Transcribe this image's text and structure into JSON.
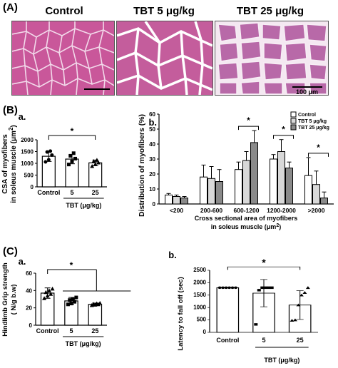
{
  "panels": {
    "A": "(A)",
    "B": "(B)",
    "C": "(C)"
  },
  "micrographs": {
    "titles": [
      "Control",
      "TBT 5 μg/kg",
      "TBT 25 μg/kg"
    ],
    "scale_label": "100 μm"
  },
  "colors": {
    "control": "#ffffff",
    "tbt5": "#d8d8d8",
    "tbt25": "#8a8a8a",
    "he_pink": "#c2508c",
    "he_light": "#e6b8d6"
  },
  "chart_data": [
    {
      "id": "Ba",
      "sub_label": "a.",
      "type": "bar",
      "categories": [
        "Control",
        "5",
        "25"
      ],
      "values": [
        1300,
        1180,
        1020
      ],
      "errors": [
        220,
        200,
        120
      ],
      "points": [
        [
          1060,
          1150,
          1350,
          1480,
          1520
        ],
        [
          950,
          1080,
          1200,
          1320,
          1430
        ],
        [
          880,
          960,
          1030,
          1090,
          1140
        ]
      ],
      "ylabel": "CSA of myofibers in soleus muscle (μm²)",
      "ylabel_lines": [
        "CSA of myofibers",
        "in soleus muscle (μm",
        ")"
      ],
      "ylabel_sup": "2",
      "xgroup_label": "TBT (μg/kg)",
      "ylim": [
        0,
        2000
      ],
      "yticks": [
        "0",
        "500",
        "1000",
        "1500",
        "2000"
      ],
      "significance": [
        {
          "from": "Control",
          "to": "25",
          "mark": "*"
        }
      ]
    },
    {
      "id": "Bb",
      "sub_label": "b.",
      "type": "bar",
      "categories": [
        "<200",
        "200-600",
        "600-1200",
        "1200-2000",
        ">2000"
      ],
      "series": [
        {
          "name": "Control",
          "values": [
            6,
            18,
            23,
            30,
            19
          ],
          "errors": [
            1,
            8,
            5,
            3,
            12
          ]
        },
        {
          "name": "TBT 5 μg/kg",
          "values": [
            5,
            17,
            29,
            35,
            13
          ],
          "errors": [
            1,
            8,
            6,
            8,
            9
          ]
        },
        {
          "name": "TBT 25 μg/kg",
          "values": [
            4,
            15,
            41,
            24,
            4
          ],
          "errors": [
            1,
            8,
            8,
            4,
            4
          ]
        }
      ],
      "ylabel": "Distribution of myofibers (%)",
      "xlabel_lines": [
        "Cross sectional area of myofibers",
        "in soleus muscle (μm",
        ")"
      ],
      "xlabel_sup": "2",
      "ylim": [
        0,
        60
      ],
      "yticks": [
        "0",
        "10",
        "20",
        "30",
        "40",
        "50",
        "60"
      ],
      "legend_position": "top-right",
      "significance": [
        "*",
        "*",
        "*"
      ]
    },
    {
      "id": "Ca",
      "sub_label": "a.",
      "type": "bar",
      "categories": [
        "Control",
        "5",
        "25"
      ],
      "values": [
        37,
        28,
        24
      ],
      "errors": [
        6,
        4,
        1.5
      ],
      "points": [
        [
          31,
          34,
          36,
          38,
          40,
          42
        ],
        [
          24,
          25,
          27,
          29,
          30,
          32
        ],
        [
          23,
          23.5,
          24,
          24.5,
          25,
          25.5
        ]
      ],
      "ylabel": "Hindlimb Grip strength ( N/g b.w)",
      "ylabel_lines": [
        "Hindlimb Grip strength",
        "( N/g b.w)"
      ],
      "xgroup_label": "TBT (μg/kg)",
      "ylim": [
        0,
        60
      ],
      "yticks": [
        "0",
        "20",
        "40",
        "60"
      ],
      "significance": [
        {
          "from": "Control",
          "to": "5, 25",
          "mark": "*"
        }
      ]
    },
    {
      "id": "Cb",
      "sub_label": "b.",
      "type": "bar",
      "categories": [
        "Control",
        "5",
        "25"
      ],
      "values": [
        1800,
        1580,
        1100
      ],
      "errors": [
        0,
        550,
        580
      ],
      "points": [
        [
          1800,
          1800,
          1800,
          1800,
          1800,
          1800
        ],
        [
          320,
          1700,
          1800,
          1800,
          1800,
          1800
        ],
        [
          480,
          500,
          1100,
          1500,
          1600,
          1800
        ]
      ],
      "ylabel": "Latency to fall off (sec)",
      "xgroup_label": "TBT (μg/kg)",
      "ylim": [
        0,
        2500
      ],
      "yticks": [
        "0",
        "500",
        "1000",
        "1500",
        "2000",
        "2500"
      ],
      "significance": [
        {
          "from": "Control",
          "to": "25",
          "mark": "*"
        }
      ]
    }
  ]
}
